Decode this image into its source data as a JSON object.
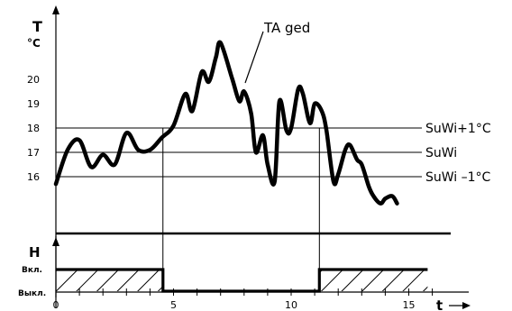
{
  "chart_data": [
    {
      "type": "line",
      "ylabel_symbol": "T",
      "ylabel_unit": "°C",
      "xlim": [
        0,
        16.5
      ],
      "ylim": [
        14.3,
        22.5
      ],
      "yticks": [
        16,
        17,
        18,
        19,
        20
      ],
      "ytick_labels": [
        "16",
        "17",
        "18",
        "19",
        "20"
      ],
      "series": [
        {
          "name": "TA ged",
          "x": [
            0,
            0.5,
            1,
            1.5,
            2,
            2.5,
            3,
            3.5,
            4,
            4.5,
            5,
            5.5,
            5.8,
            6.2,
            6.5,
            6.8,
            7,
            7.5,
            7.8,
            8,
            8.3,
            8.5,
            8.8,
            9,
            9.3,
            9.5,
            9.8,
            10,
            10.3,
            10.5,
            10.8,
            11,
            11.3,
            11.5,
            11.8,
            12,
            12.3,
            12.5,
            12.8,
            13,
            13.3,
            13.5,
            13.8,
            14,
            14.3,
            14.5
          ],
          "y": [
            15.7,
            17.1,
            17.5,
            16.4,
            16.9,
            16.5,
            17.8,
            17.1,
            17.1,
            17.6,
            18.1,
            19.4,
            18.7,
            20.3,
            19.9,
            20.9,
            21.5,
            20.0,
            19.1,
            19.5,
            18.6,
            17.0,
            17.7,
            16.5,
            15.8,
            19.1,
            17.9,
            18.0,
            19.6,
            19.4,
            18.2,
            19.0,
            18.7,
            17.9,
            15.8,
            16.1,
            17.1,
            17.3,
            16.7,
            16.5,
            15.6,
            15.2,
            14.9,
            15.1,
            15.2,
            14.9
          ]
        }
      ],
      "reference_lines": [
        {
          "label": "SuWi+1°C",
          "y": 18
        },
        {
          "label": "SuWi",
          "y": 17
        },
        {
          "label": "SuWi –1°C",
          "y": 16
        }
      ],
      "annotation": "TA ged",
      "grid": false
    },
    {
      "type": "line",
      "ylabel_symbol": "H",
      "xlabel": "t",
      "xlim": [
        0,
        16.5
      ],
      "xticks": [
        0,
        5,
        10,
        15
      ],
      "xtick_labels": [
        "0",
        "5",
        "10",
        "15"
      ],
      "state_labels": [
        "Вкл.",
        "Выкл."
      ],
      "series": [
        {
          "name": "H",
          "x": [
            0,
            4.55,
            4.55,
            11.2,
            11.2,
            15.8
          ],
          "y": [
            1,
            1,
            0,
            0,
            1,
            1
          ]
        }
      ]
    }
  ]
}
